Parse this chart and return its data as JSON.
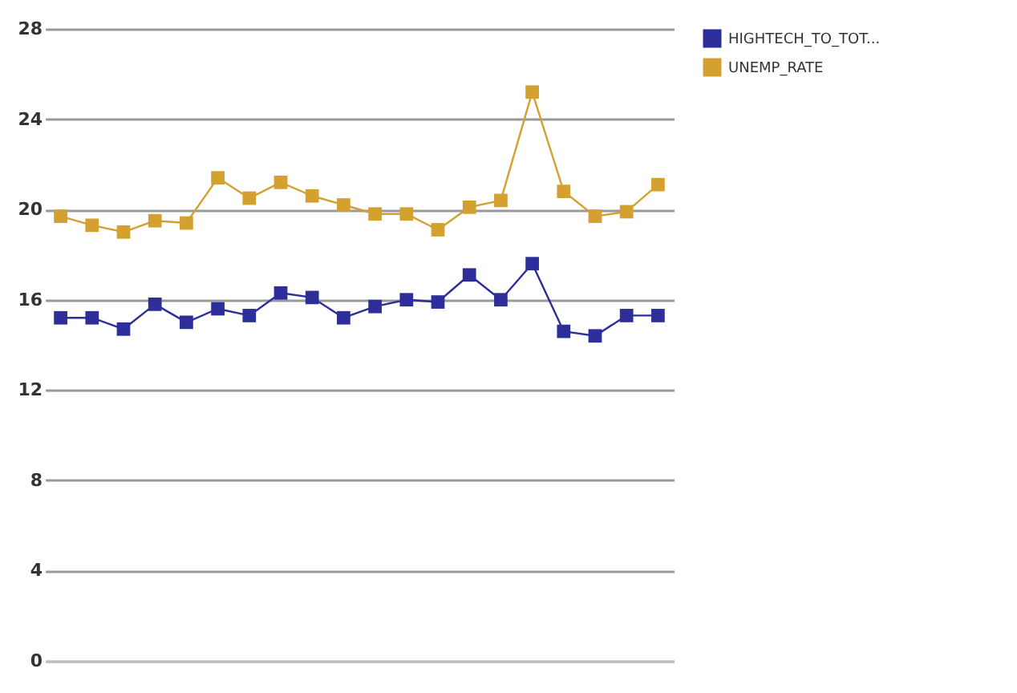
{
  "chart_data": {
    "type": "line",
    "categories": [
      null,
      null,
      null,
      null,
      null,
      null,
      null,
      null,
      null,
      null,
      null,
      null,
      null,
      null,
      null,
      null,
      null,
      null,
      null,
      null
    ],
    "series": [
      {
        "name": "HIGHTECH_TO_TOT...",
        "color": "#2e2e9a",
        "values": [
          15.2,
          15.2,
          14.7,
          15.8,
          15.0,
          15.6,
          15.3,
          16.3,
          16.1,
          15.2,
          15.7,
          16.0,
          15.9,
          17.1,
          16.0,
          17.6,
          14.6,
          14.4,
          15.3,
          15.3
        ]
      },
      {
        "name": "UNEMP_RATE",
        "color": "#d4a030",
        "values": [
          19.7,
          19.3,
          19.0,
          19.5,
          19.4,
          21.4,
          20.5,
          21.2,
          20.6,
          20.2,
          19.8,
          19.8,
          19.1,
          20.1,
          20.4,
          25.2,
          20.8,
          19.7,
          19.9,
          21.1
        ]
      }
    ],
    "ylim": [
      0,
      28
    ],
    "yticks": [
      0,
      4,
      8,
      12,
      16,
      20,
      24,
      28
    ],
    "grid": "y",
    "legend": "top right",
    "marker": "square",
    "line_style": "solid"
  }
}
